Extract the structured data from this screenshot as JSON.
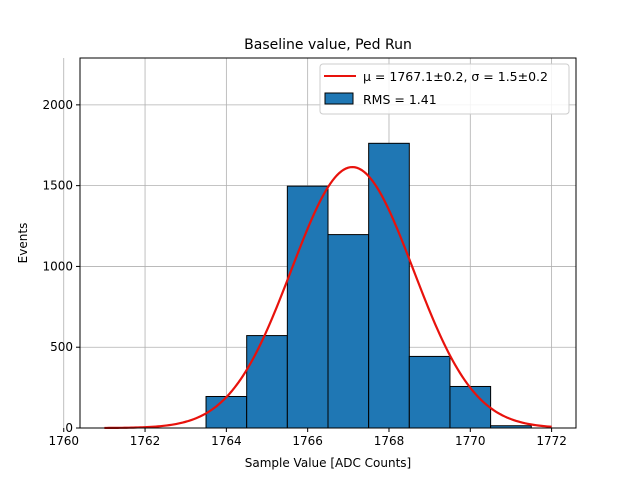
{
  "chart_data": {
    "type": "bar",
    "title": "Baseline value, Ped Run",
    "xlabel": "Sample Value [ADC Counts]",
    "ylabel": "Events",
    "xlim": [
      1760.4,
      1772.6
    ],
    "ylim": [
      0,
      2290
    ],
    "xticks": [
      1760,
      1762,
      1764,
      1766,
      1768,
      1770,
      1772
    ],
    "yticks": [
      0,
      500,
      1000,
      1500,
      2000
    ],
    "grid": true,
    "legend_position": "top-right",
    "bar_color": "#1f77b4",
    "fit_color": "#e8120c",
    "bins": [
      {
        "x0": 1763.5,
        "x1": 1764.5,
        "count": 195
      },
      {
        "x0": 1764.5,
        "x1": 1765.5,
        "count": 572
      },
      {
        "x0": 1765.5,
        "x1": 1766.5,
        "count": 1497
      },
      {
        "x0": 1766.5,
        "x1": 1767.5,
        "count": 1197
      },
      {
        "x0": 1767.5,
        "x1": 1768.5,
        "count": 1762
      },
      {
        "x0": 1768.5,
        "x1": 1769.5,
        "count": 443
      },
      {
        "x0": 1769.5,
        "x1": 1770.5,
        "count": 257
      },
      {
        "x0": 1770.5,
        "x1": 1771.5,
        "count": 14
      }
    ],
    "fit": {
      "type": "gaussian",
      "mu": 1767.1,
      "sigma": 1.5,
      "amplitude": 1615,
      "x_range": [
        1761,
        1772
      ]
    },
    "series": [
      {
        "name": "μ = 1767.1±0.2, σ = 1.5±0.2",
        "kind": "line"
      },
      {
        "name": "RMS = 1.41",
        "kind": "histogram"
      }
    ]
  }
}
